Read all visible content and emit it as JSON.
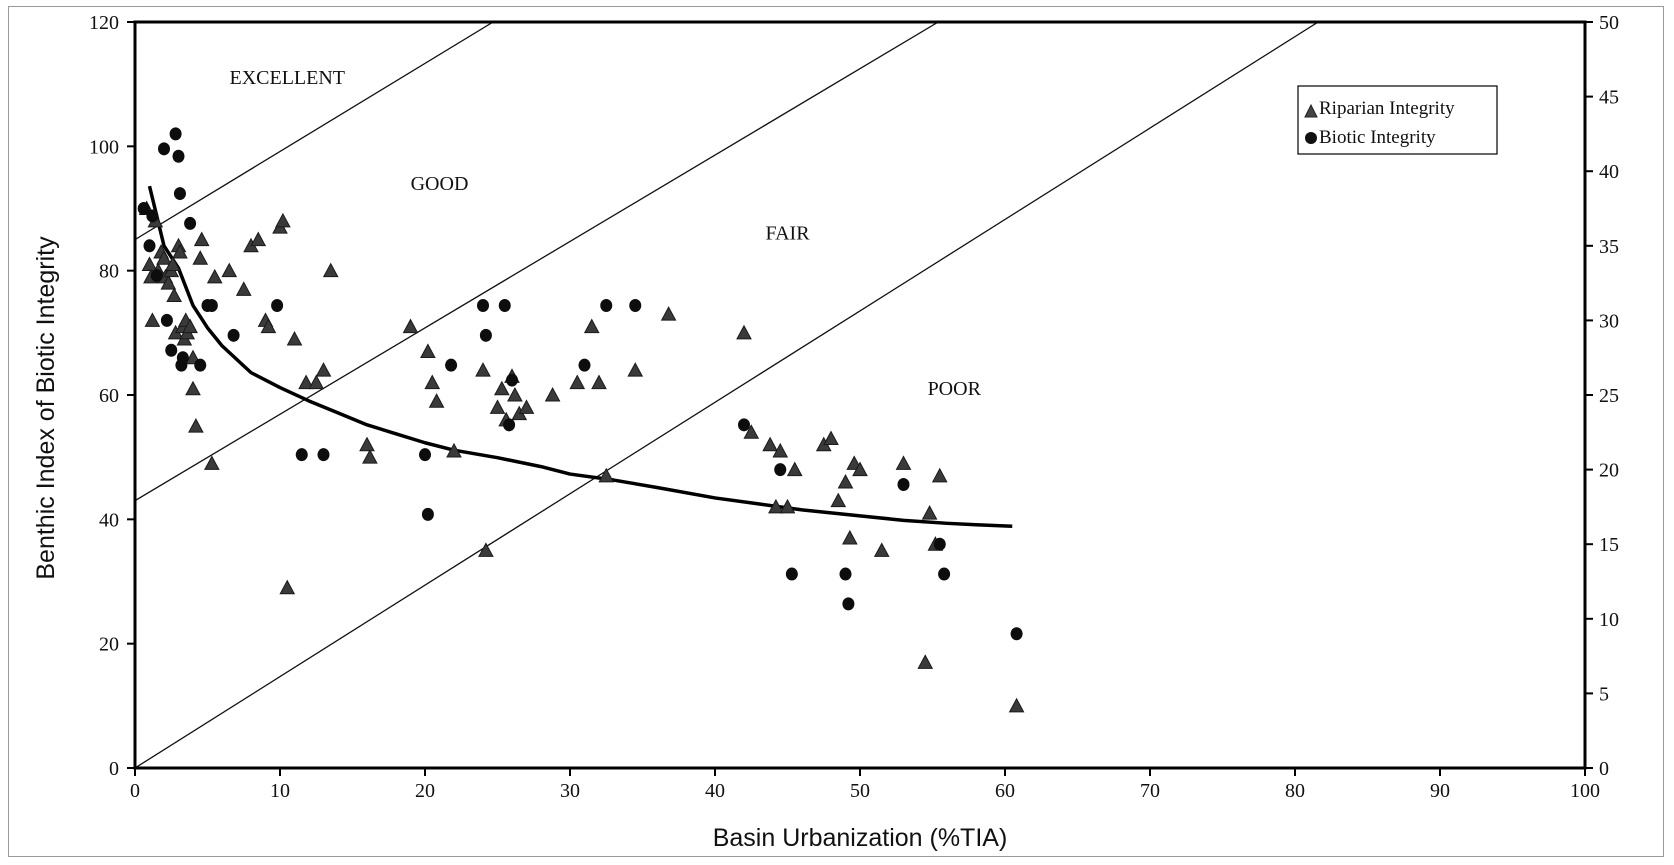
{
  "chart_data": {
    "type": "scatter",
    "title": "",
    "xlabel": "Basin Urbanization (%TIA)",
    "ylabel": "Benthic Index of Biotic Integrity",
    "xlim": [
      0,
      100
    ],
    "ylim": [
      0,
      120
    ],
    "y2lim": [
      0,
      50
    ],
    "xticks": [
      0,
      10,
      20,
      30,
      40,
      50,
      60,
      70,
      80,
      90,
      100
    ],
    "yticks": [
      0,
      20,
      40,
      60,
      80,
      100,
      120
    ],
    "y2ticks": [
      0,
      5,
      10,
      15,
      20,
      25,
      30,
      35,
      40,
      45,
      50
    ],
    "grid": false,
    "legend_position": "top-right",
    "zone_labels": [
      {
        "text": "EXCELLENT",
        "x": 10.5,
        "y": 110
      },
      {
        "text": "GOOD",
        "x": 21.0,
        "y": 93
      },
      {
        "text": "FAIR",
        "x": 45.0,
        "y": 85
      },
      {
        "text": "POOR",
        "x": 56.5,
        "y": 60
      }
    ],
    "boundary_lines": [
      {
        "x": [
          0,
          24.7
        ],
        "y": [
          85,
          120
        ]
      },
      {
        "x": [
          0,
          55.4
        ],
        "y": [
          43,
          120
        ]
      },
      {
        "x": [
          0,
          81.6
        ],
        "y": [
          0,
          120
        ]
      }
    ],
    "series": [
      {
        "name": "Riparian Integrity",
        "marker": "triangle",
        "x": [
          0.8,
          1.0,
          1.1,
          1.2,
          1.4,
          1.6,
          1.8,
          2.0,
          2.1,
          2.3,
          2.5,
          2.6,
          2.7,
          2.8,
          3.0,
          3.1,
          3.3,
          3.4,
          3.5,
          3.6,
          3.8,
          4.0,
          4.0,
          4.2,
          4.5,
          4.6,
          5.3,
          5.5,
          6.5,
          7.5,
          8.0,
          8.5,
          9.0,
          9.2,
          10.0,
          10.2,
          10.5,
          11.0,
          11.8,
          12.5,
          13.0,
          13.5,
          16.0,
          16.2,
          19.0,
          20.2,
          20.5,
          20.8,
          22.0,
          24.0,
          24.2,
          25.0,
          25.3,
          25.6,
          26.0,
          26.2,
          26.5,
          27.0,
          28.8,
          30.5,
          31.5,
          32.0,
          32.5,
          34.5,
          36.8,
          42.0,
          42.5,
          43.8,
          44.2,
          44.5,
          45.0,
          45.5,
          47.5,
          48.0,
          48.5,
          49.0,
          49.3,
          49.6,
          50.0,
          51.5,
          53.0,
          54.5,
          54.8,
          55.2,
          55.5,
          60.8
        ],
        "y": [
          90,
          81,
          79,
          72,
          88,
          80,
          83,
          82,
          79,
          78,
          80,
          81,
          76,
          70,
          84,
          83,
          71,
          69,
          72,
          70,
          71,
          66,
          61,
          55,
          82,
          85,
          49,
          79,
          80,
          77,
          84,
          85,
          72,
          71,
          87,
          88,
          29,
          69,
          62,
          62,
          64,
          80,
          52,
          50,
          71,
          67,
          62,
          59,
          51,
          64,
          35,
          58,
          61,
          56,
          63,
          60,
          57,
          58,
          60,
          62,
          71,
          62,
          47,
          64,
          73,
          70,
          54,
          52,
          42,
          51,
          42,
          48,
          52,
          53,
          43,
          46,
          37,
          49,
          48,
          35,
          49,
          17,
          41,
          36,
          47,
          10
        ]
      },
      {
        "name": "Biotic Integrity",
        "marker": "circle",
        "x": [
          0.6,
          1.0,
          1.2,
          1.5,
          2.0,
          2.2,
          2.5,
          2.8,
          3.0,
          3.1,
          3.2,
          3.3,
          3.8,
          4.5,
          5.0,
          5.3,
          6.8,
          9.8,
          11.5,
          13.0,
          20.0,
          20.2,
          21.8,
          24.0,
          24.2,
          25.5,
          25.8,
          26.0,
          31.0,
          32.5,
          34.5,
          42.0,
          44.5,
          45.3,
          49.0,
          49.2,
          53.0,
          55.5,
          55.8,
          60.8
        ],
        "y": [
          37.5,
          35.0,
          37.0,
          33.0,
          41.5,
          30.0,
          28.0,
          42.5,
          41.0,
          38.5,
          27.0,
          27.5,
          36.5,
          27.0,
          31.0,
          31.0,
          29.0,
          31.0,
          21.0,
          21.0,
          21.0,
          17.0,
          27.0,
          31.0,
          29.0,
          31.0,
          23.0,
          26.0,
          27.0,
          31.0,
          31.0,
          23.0,
          20.0,
          13.0,
          13.0,
          11.0,
          19.0,
          15.0,
          13.0,
          9.0
        ]
      }
    ],
    "trend_line": {
      "x": [
        1.0,
        2.0,
        3.0,
        4.0,
        5.0,
        6.0,
        8.0,
        10.0,
        12.0,
        14.0,
        16.0,
        18.0,
        20.0,
        22.0,
        25.0,
        28.0,
        30.0,
        33.0,
        36.0,
        40.0,
        43.0,
        46.0,
        50.0,
        53.0,
        56.0,
        58.0,
        60.5
      ],
      "y": [
        39.0,
        35.0,
        33.5,
        31.0,
        29.5,
        28.3,
        26.5,
        25.5,
        24.6,
        23.8,
        23.0,
        22.4,
        21.8,
        21.3,
        20.8,
        20.2,
        19.7,
        19.3,
        18.8,
        18.1,
        17.7,
        17.3,
        16.9,
        16.6,
        16.4,
        16.3,
        16.2
      ]
    },
    "legend": {
      "entries": [
        "Riparian Integrity",
        "Biotic Integrity"
      ]
    }
  }
}
